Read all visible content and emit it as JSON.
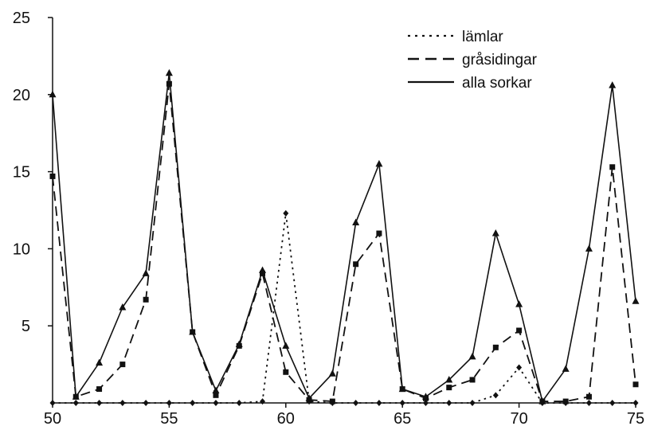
{
  "chart_data": {
    "type": "line",
    "title": "",
    "xlabel": "",
    "ylabel": "",
    "xlim": [
      50,
      75
    ],
    "ylim": [
      0,
      25
    ],
    "x_ticks": [
      50,
      55,
      60,
      65,
      70,
      75
    ],
    "y_ticks": [
      5,
      10,
      15,
      20,
      25
    ],
    "grid": false,
    "legend_position": "top-right",
    "x": [
      50,
      51,
      52,
      53,
      54,
      55,
      56,
      57,
      58,
      59,
      60,
      61,
      62,
      63,
      64,
      65,
      66,
      67,
      68,
      69,
      70,
      71,
      72,
      73,
      74,
      75
    ],
    "series": [
      {
        "name": "lämlar",
        "style": "dotted",
        "marker": "diamond",
        "values": [
          0,
          0,
          0,
          0,
          0,
          0,
          0,
          0,
          0,
          0.1,
          12.3,
          0.1,
          0,
          0,
          0,
          0,
          0,
          0,
          0,
          0.5,
          2.3,
          0,
          0,
          0,
          0,
          0
        ]
      },
      {
        "name": "gråsidingar",
        "style": "dashed",
        "marker": "square",
        "values": [
          14.7,
          0.4,
          0.9,
          2.5,
          6.7,
          20.7,
          4.6,
          0.5,
          3.7,
          8.4,
          2.0,
          0.2,
          0.1,
          9.0,
          11.0,
          0.9,
          0.3,
          1.0,
          1.5,
          3.6,
          4.7,
          0.1,
          0.1,
          0.4,
          15.3,
          1.2
        ]
      },
      {
        "name": "alla sorkar",
        "style": "solid",
        "marker": "triangle",
        "values": [
          20.0,
          0.4,
          2.6,
          6.2,
          8.4,
          21.4,
          4.6,
          0.8,
          3.8,
          8.6,
          3.7,
          0.3,
          1.9,
          11.7,
          15.5,
          0.9,
          0.4,
          1.5,
          3.0,
          11.0,
          6.4,
          0.1,
          2.2,
          10.0,
          20.6,
          6.6
        ]
      }
    ]
  }
}
